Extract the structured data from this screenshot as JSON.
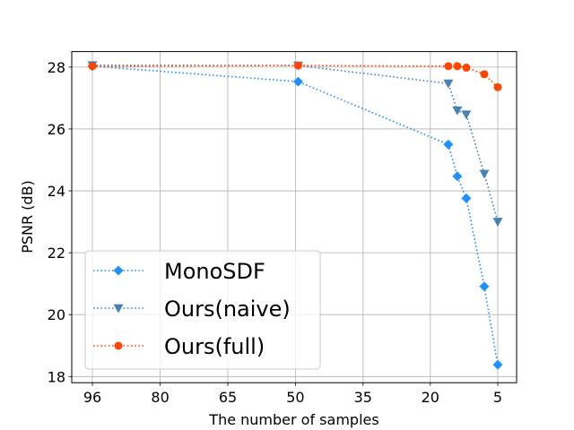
{
  "chart_data": {
    "type": "line",
    "title": "",
    "xlabel": "The number of samples",
    "ylabel": "PSNR (dB)",
    "grid": true,
    "legend_position": "lower-left",
    "x_ticks": [
      "96",
      "80",
      "65",
      "50",
      "35",
      "20",
      "5"
    ],
    "y_ticks": [
      18,
      20,
      22,
      24,
      26,
      28
    ],
    "ylim": [
      17.8,
      28.5
    ],
    "x_axis_note": "x positions follow the tick order; 96 at left, 5 at right",
    "series": [
      {
        "name": "MonoSDF",
        "color": "#1e90ff",
        "marker": "diamond",
        "points": [
          {
            "x": 96,
            "y": 28.03
          },
          {
            "x": 49.4,
            "y": 27.53
          },
          {
            "x": 16.0,
            "y": 25.5
          },
          {
            "x": 14.0,
            "y": 24.47
          },
          {
            "x": 12.0,
            "y": 23.76
          },
          {
            "x": 8.0,
            "y": 20.91
          },
          {
            "x": 5.0,
            "y": 18.38
          }
        ]
      },
      {
        "name": "Ours(naive)",
        "color": "#4682b4",
        "marker": "triangle-down",
        "points": [
          {
            "x": 96,
            "y": 28.06
          },
          {
            "x": 49.4,
            "y": 28.05
          },
          {
            "x": 16.0,
            "y": 27.47
          },
          {
            "x": 14.0,
            "y": 26.6
          },
          {
            "x": 12.0,
            "y": 26.47
          },
          {
            "x": 8.0,
            "y": 24.55
          },
          {
            "x": 5.0,
            "y": 23.0
          }
        ]
      },
      {
        "name": "Ours(full)",
        "color": "#ff4500",
        "marker": "circle",
        "points": [
          {
            "x": 96,
            "y": 28.03
          },
          {
            "x": 49.4,
            "y": 28.05
          },
          {
            "x": 16.0,
            "y": 28.03
          },
          {
            "x": 14.0,
            "y": 28.03
          },
          {
            "x": 12.0,
            "y": 27.98
          },
          {
            "x": 8.0,
            "y": 27.77
          },
          {
            "x": 5.0,
            "y": 27.35
          }
        ]
      }
    ]
  }
}
